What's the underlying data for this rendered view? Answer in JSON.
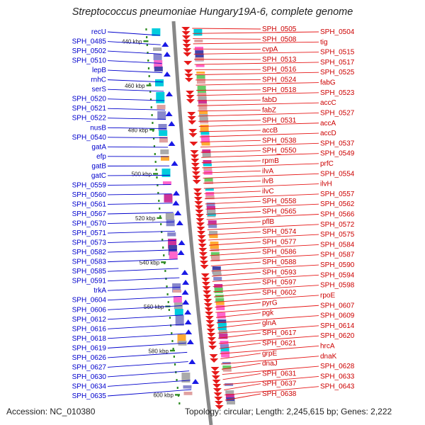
{
  "title": "Streptococcus pneumoniae Hungary19A-6, complete genome",
  "footer": {
    "accession": "Accession: NC_010380",
    "topology": "Topology: circular; Length: 2,245,615 bp; Genes: 2,222"
  },
  "colors": {
    "minus_strand_label": "#0000cc",
    "plus_strand_label": "#cc0000",
    "minus_feature": "#1a1ae6",
    "plus_feature": "#e61a1a",
    "backbone": "#888888",
    "scale_tick": "#2e8b22",
    "cog_palette": [
      "#ff66cc",
      "#00ccdd",
      "#8888cc",
      "#e0a0a0",
      "#66cc66",
      "#ffaa33",
      "#4444aa",
      "#aaaaaa",
      "#cc3399"
    ]
  },
  "scale_marks": [
    "440 kbp",
    "460 kbp",
    "480 kbp",
    "500 kbp",
    "520 kbp",
    "540 kbp",
    "560 kbp",
    "580 kbp",
    "600 kbp"
  ],
  "minus_strand_labels": [
    "recU",
    "SPH_0485",
    "SPH_0502",
    "SPH_0510",
    "lepB",
    "rnhC",
    "serS",
    "SPH_0520",
    "SPH_0521",
    "SPH_0522",
    "nusB",
    "SPH_0540",
    "gatA",
    "efp",
    "gatB",
    "gatC",
    "SPH_0559",
    "SPH_0560",
    "SPH_0561",
    "SPH_0567",
    "SPH_0570",
    "SPH_0571",
    "SPH_0573",
    "SPH_0582",
    "SPH_0583",
    "SPH_0585",
    "SPH_0591",
    "trkA",
    "SPH_0604",
    "SPH_0606",
    "SPH_0612",
    "SPH_0616",
    "SPH_0618",
    "SPH_0619",
    "SPH_0626",
    "SPH_0627",
    "SPH_0630",
    "SPH_0634",
    "SPH_0635"
  ],
  "plus_strand_labels": [
    "SPH_0505",
    "SPH_0504",
    "SPH_0508",
    "tig",
    "cvpA",
    "SPH_0515",
    "SPH_0513",
    "SPH_0517",
    "SPH_0516",
    "SPH_0525",
    "SPH_0524",
    "fabG",
    "SPH_0518",
    "SPH_0523",
    "fabD",
    "accC",
    "fabZ",
    "SPH_0527",
    "SPH_0531",
    "accA",
    "accB",
    "accD",
    "SPH_0538",
    "SPH_0537",
    "SPH_0550",
    "SPH_0549",
    "rpmB",
    "prfC",
    "ilvA",
    "SPH_0554",
    "ilvB",
    "ilvH",
    "ilvC",
    "SPH_0557",
    "SPH_0558",
    "SPH_0562",
    "SPH_0565",
    "SPH_0566",
    "pflB",
    "SPH_0572",
    "SPH_0574",
    "SPH_0575",
    "SPH_0577",
    "SPH_0584",
    "SPH_0586",
    "SPH_0587",
    "SPH_0588",
    "SPH_0590",
    "SPH_0593",
    "SPH_0594",
    "SPH_0597",
    "SPH_0598",
    "SPH_0602",
    "rpoE",
    "pyrG",
    "SPH_0607",
    "pgk",
    "SPH_0609",
    "glnA",
    "SPH_0614",
    "SPH_0617",
    "SPH_0620",
    "SPH_0621",
    "hrcA",
    "grpE",
    "dnaK",
    "dnaJ",
    "SPH_0628",
    "SPH_0631",
    "SPH_0633",
    "SPH_0637",
    "SPH_0643",
    "SPH_0638"
  ]
}
